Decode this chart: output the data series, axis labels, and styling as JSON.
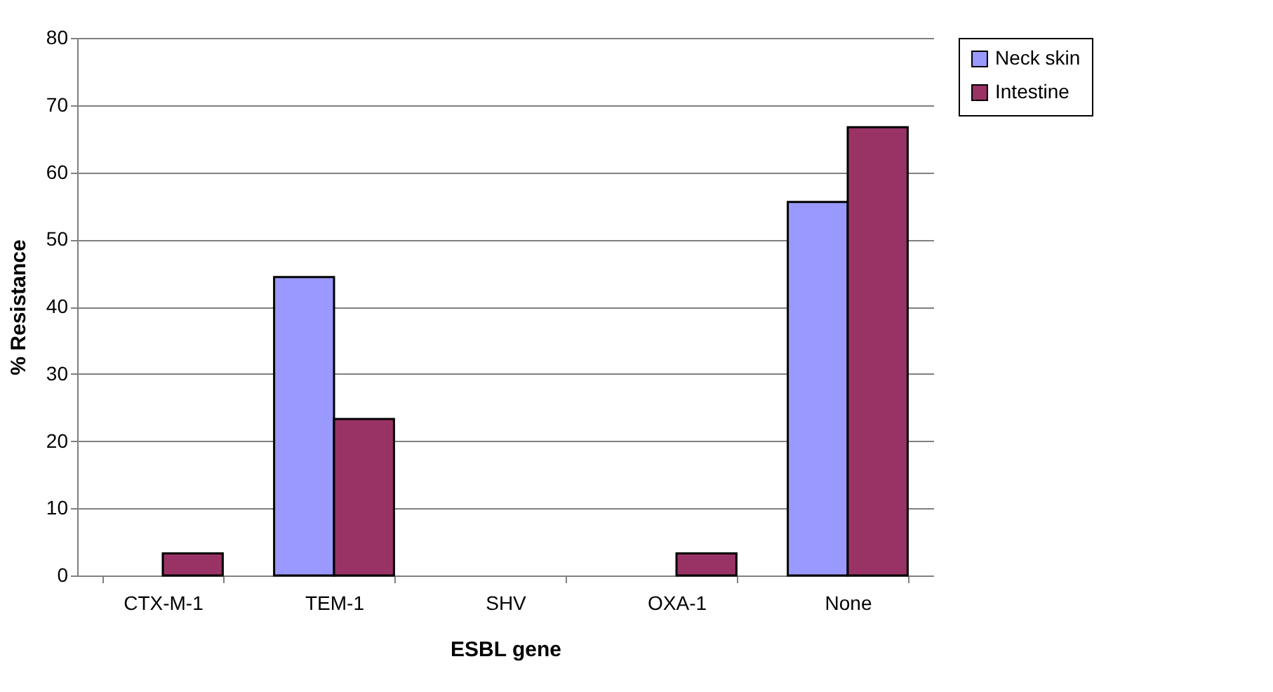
{
  "chart_data": {
    "type": "bar",
    "xlabel": "ESBL gene",
    "ylabel": "% Resistance",
    "categories": [
      "CTX-M-1",
      "TEM-1",
      "SHV",
      "OXA-1",
      "None"
    ],
    "series": [
      {
        "name": "Neck skin",
        "color": "#9999ff",
        "values": [
          0,
          44.4,
          0,
          0,
          55.6
        ]
      },
      {
        "name": "Intestine",
        "color": "#993366",
        "values": [
          3.3,
          23.3,
          0,
          3.3,
          66.7
        ]
      }
    ],
    "ylim": [
      0,
      80
    ],
    "yticks": [
      0,
      10,
      20,
      30,
      40,
      50,
      60,
      70,
      80
    ],
    "grid": "y",
    "legend": "right"
  }
}
